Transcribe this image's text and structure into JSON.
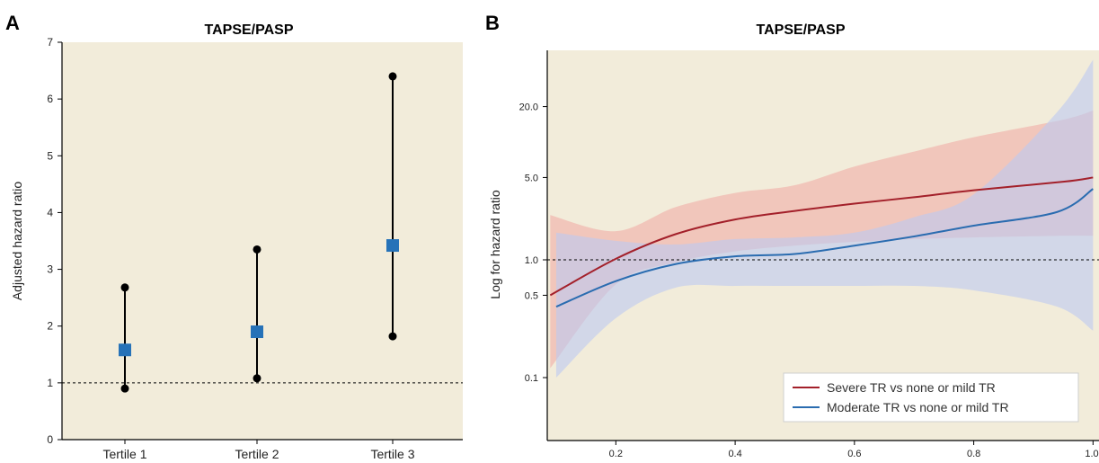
{
  "chart_data": [
    {
      "panel": "A",
      "type": "scatter",
      "title": "TAPSE/PASP",
      "ylabel": "Adjusted hazard ratio",
      "xlabel": "",
      "categories": [
        "Tertile 1",
        "Tertile 2",
        "Tertile 3"
      ],
      "estimate": [
        1.58,
        1.9,
        3.42
      ],
      "ci_lower": [
        0.9,
        1.08,
        1.82
      ],
      "ci_upper": [
        2.68,
        3.35,
        6.4
      ],
      "ylim": [
        0,
        7
      ],
      "yticks": [
        "0",
        "1",
        "2",
        "3",
        "4",
        "5",
        "6",
        "7"
      ],
      "reference_line": 1,
      "colors": {
        "background": "#f2ecda",
        "point": "#2672b8",
        "ci": "#000000"
      }
    },
    {
      "panel": "B",
      "type": "line",
      "title": "TAPSE/PASP",
      "ylabel": "Log for hazard ratio",
      "xlabel": "",
      "y_scale": "log",
      "ylim": [
        0.05,
        60
      ],
      "yticks": [
        "0.1",
        "0.5",
        "1.0",
        "5.0",
        "20.0"
      ],
      "xticks": [
        "0.2",
        "0.4",
        "0.6",
        "0.8",
        "1.0"
      ],
      "xlim": [
        0.085,
        1.01
      ],
      "reference_line": 1,
      "legend": "bottom-right",
      "colors": {
        "background": "#f2ecda"
      },
      "series": [
        {
          "name": "Severe TR vs none or mild TR",
          "color": "#a3202a",
          "band_color": "#f1b6ae",
          "x": [
            0.09,
            0.2,
            0.3,
            0.4,
            0.5,
            0.6,
            0.7,
            0.8,
            0.95,
            1.0
          ],
          "y": [
            0.5,
            1.02,
            1.65,
            2.2,
            2.6,
            3.0,
            3.4,
            3.9,
            4.6,
            5.0
          ],
          "lower": [
            0.12,
            0.62,
            0.95,
            1.18,
            1.32,
            1.42,
            1.5,
            1.55,
            1.6,
            1.6
          ],
          "upper": [
            2.4,
            1.75,
            2.8,
            3.7,
            4.3,
            6.2,
            8.3,
            11.0,
            15.5,
            18.5
          ]
        },
        {
          "name": "Moderate TR vs none or mild TR",
          "color": "#2a6cb0",
          "band_color": "#bccaf1",
          "x": [
            0.1,
            0.2,
            0.3,
            0.4,
            0.5,
            0.6,
            0.7,
            0.8,
            0.94,
            1.0
          ],
          "y": [
            0.4,
            0.66,
            0.92,
            1.07,
            1.12,
            1.32,
            1.58,
            1.95,
            2.55,
            4.0
          ],
          "lower": [
            0.1,
            0.32,
            0.58,
            0.6,
            0.6,
            0.6,
            0.6,
            0.55,
            0.4,
            0.25
          ],
          "upper": [
            1.7,
            1.45,
            1.35,
            1.5,
            1.55,
            1.7,
            2.3,
            3.6,
            18.0,
            50.0
          ]
        }
      ]
    }
  ]
}
